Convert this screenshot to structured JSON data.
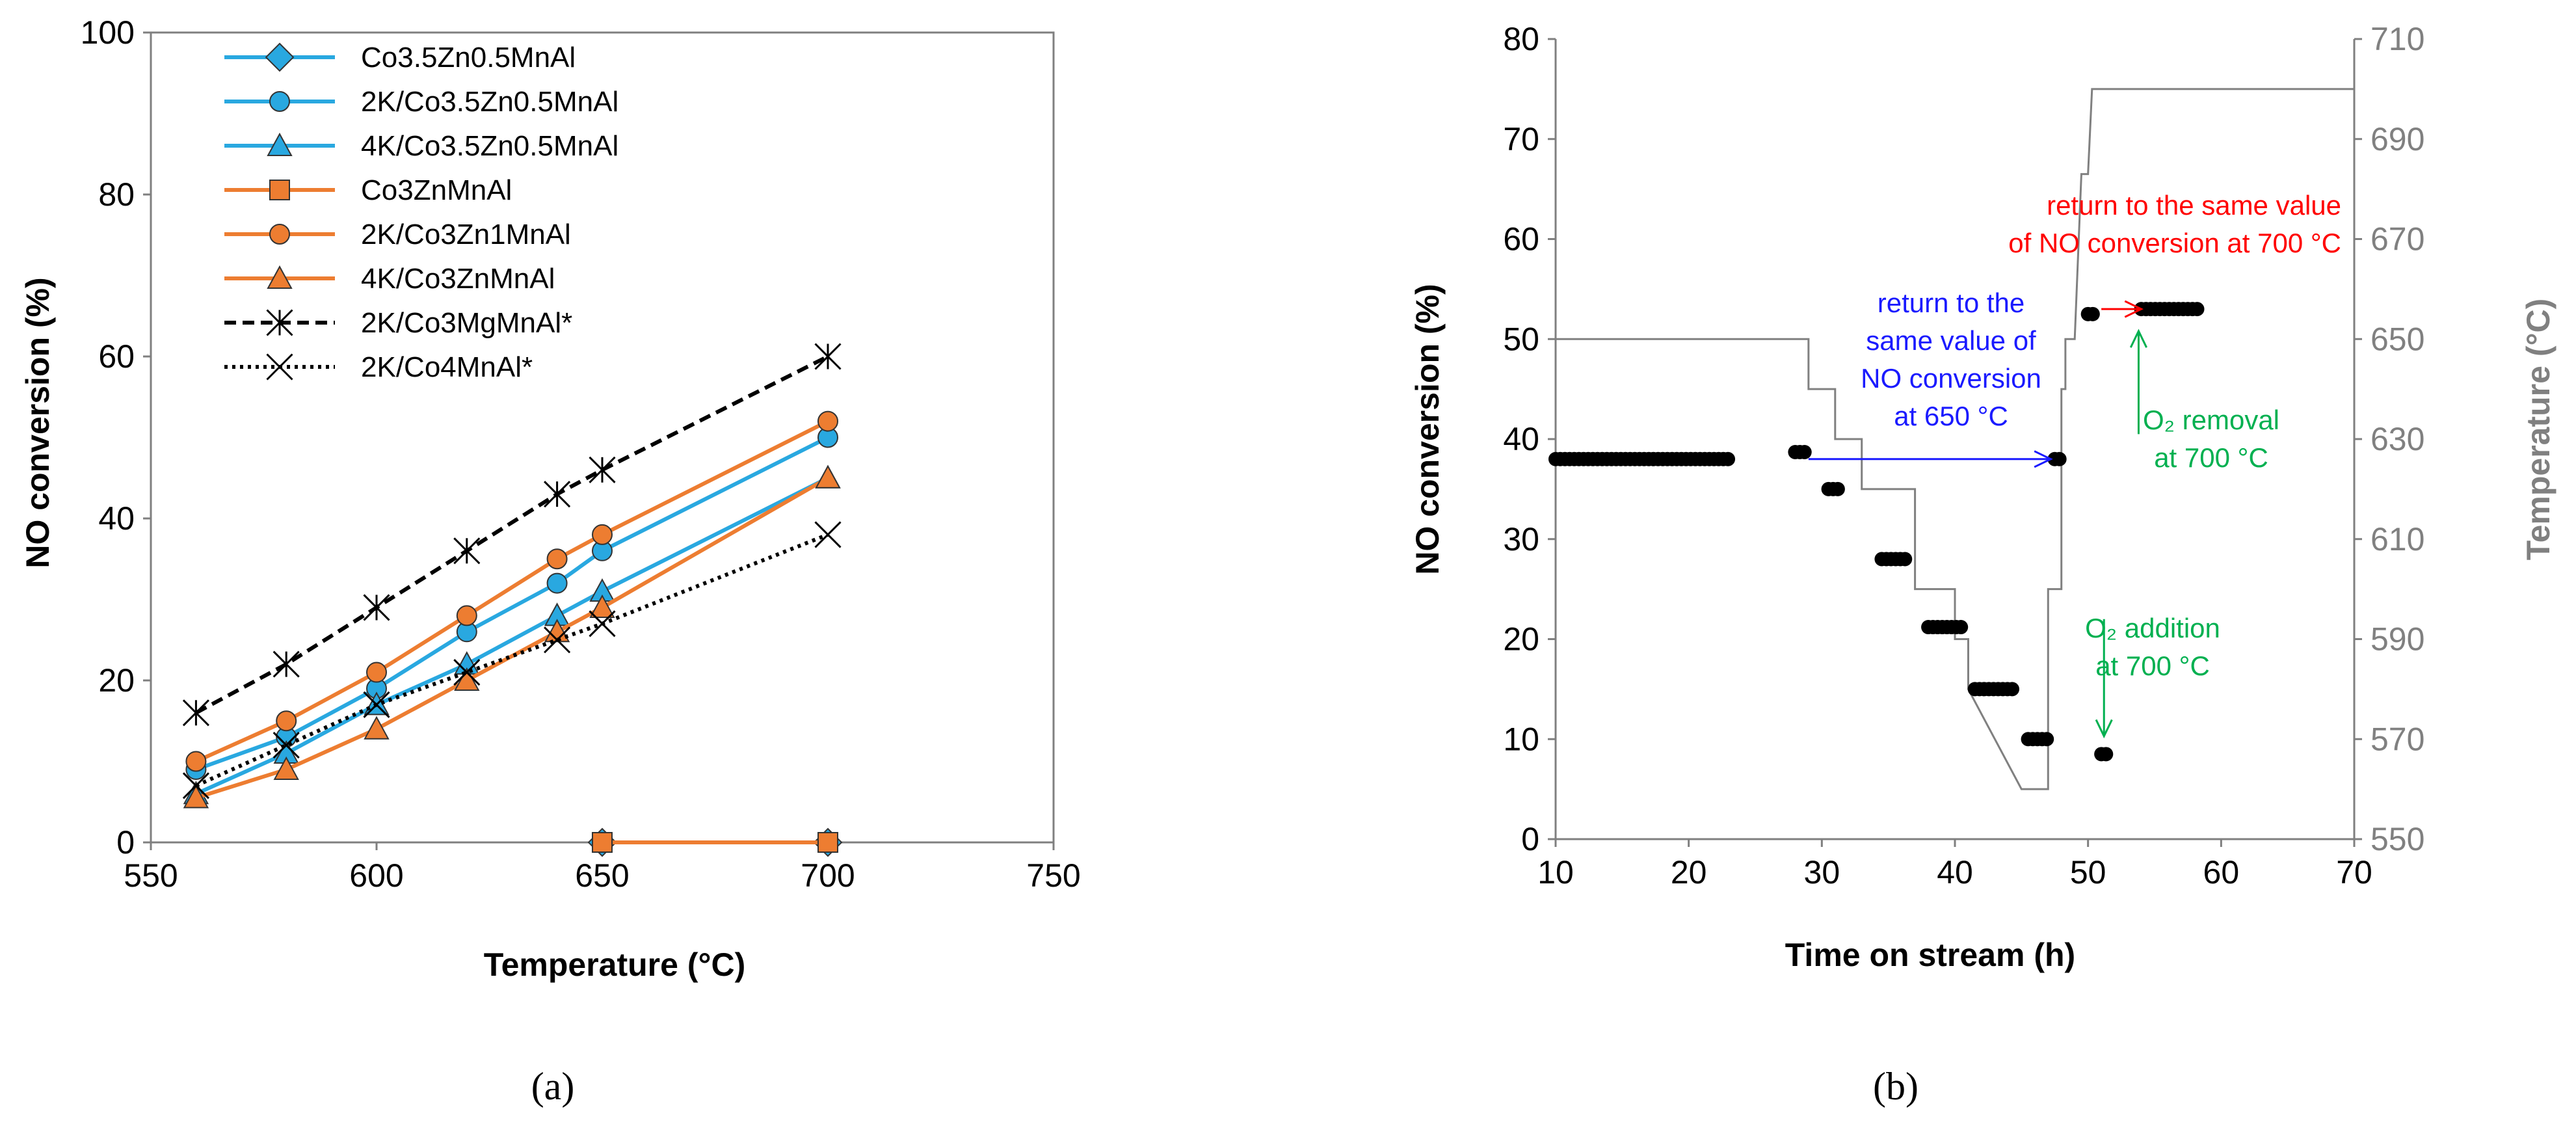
{
  "chart_data": [
    {
      "type": "line",
      "panel_label": "(a)",
      "xlabel": "Temperature (°C)",
      "ylabel": "NO conversion (%)",
      "xlim": [
        550,
        750
      ],
      "ylim": [
        0,
        100
      ],
      "xticks": [
        550,
        600,
        650,
        700,
        750
      ],
      "yticks": [
        0,
        20,
        40,
        60,
        80,
        100
      ],
      "legend_position": "top-left",
      "series": [
        {
          "name": "Co3.5Zn0.5MnAl",
          "color": "#29a8e0",
          "marker": "diamond",
          "dash": "solid",
          "x": [
            650,
            700
          ],
          "y": [
            0,
            0
          ]
        },
        {
          "name": "2K/Co3.5Zn0.5MnAl",
          "color": "#29a8e0",
          "marker": "circle",
          "dash": "solid",
          "x": [
            560,
            580,
            600,
            620,
            640,
            650,
            700
          ],
          "y": [
            9,
            13,
            19,
            26,
            32,
            36,
            50
          ]
        },
        {
          "name": "4K/Co3.5Zn0.5MnAl",
          "color": "#29a8e0",
          "marker": "triangle",
          "dash": "solid",
          "x": [
            560,
            580,
            600,
            620,
            640,
            650,
            700
          ],
          "y": [
            6,
            11,
            17,
            22,
            28,
            31,
            45
          ]
        },
        {
          "name": "Co3ZnMnAl",
          "color": "#ed7d31",
          "marker": "square",
          "dash": "solid",
          "x": [
            650,
            700
          ],
          "y": [
            0,
            0
          ]
        },
        {
          "name": "2K/Co3Zn1MnAl",
          "color": "#ed7d31",
          "marker": "circle",
          "dash": "solid",
          "x": [
            560,
            580,
            600,
            620,
            640,
            650,
            700
          ],
          "y": [
            10,
            15,
            21,
            28,
            35,
            38,
            52
          ]
        },
        {
          "name": "4K/Co3ZnMnAl",
          "color": "#ed7d31",
          "marker": "triangle",
          "dash": "solid",
          "x": [
            560,
            580,
            600,
            620,
            640,
            650,
            700
          ],
          "y": [
            5.5,
            9,
            14,
            20,
            26,
            29,
            45
          ]
        },
        {
          "name": "2K/Co3MgMnAl*",
          "color": "#000000",
          "marker": "asterisk",
          "dash": "dashed",
          "x": [
            560,
            580,
            600,
            620,
            640,
            650,
            700
          ],
          "y": [
            16,
            22,
            29,
            36,
            43,
            46,
            60
          ]
        },
        {
          "name": "2K/Co4MnAl*",
          "color": "#000000",
          "marker": "x",
          "dash": "dotted",
          "x": [
            560,
            580,
            600,
            620,
            640,
            650,
            700
          ],
          "y": [
            7,
            12,
            17,
            21,
            25,
            27,
            38
          ]
        }
      ]
    },
    {
      "type": "scatter",
      "panel_label": "(b)",
      "xlabel": "Time on stream (h)",
      "ylabel": "NO conversion (%)",
      "y2label": "Temperature (°C)",
      "xlim": [
        10,
        70
      ],
      "ylim": [
        0,
        80
      ],
      "y2lim": [
        550,
        710
      ],
      "xticks": [
        10,
        20,
        30,
        40,
        50,
        60,
        70
      ],
      "yticks": [
        0,
        10,
        20,
        30,
        40,
        50,
        60,
        70,
        80
      ],
      "y2ticks": [
        550,
        570,
        590,
        610,
        630,
        650,
        670,
        690,
        710
      ],
      "no_conversion_series": {
        "name": "NO conversion",
        "color": "#000000",
        "segments": [
          {
            "x_start": 10,
            "x_end": 23,
            "y": 38
          },
          {
            "x_start": 28,
            "x_end": 29,
            "y": 38.7
          },
          {
            "x_start": 30.5,
            "x_end": 31.5,
            "y": 35
          },
          {
            "x_start": 34.5,
            "x_end": 36.5,
            "y": 28
          },
          {
            "x_start": 38,
            "x_end": 40.5,
            "y": 21.2
          },
          {
            "x_start": 41.5,
            "x_end": 44.5,
            "y": 15
          },
          {
            "x_start": 45.5,
            "x_end": 47,
            "y": 10
          },
          {
            "x_start": 47.5,
            "x_end": 48,
            "y": 38
          },
          {
            "x_start": 50,
            "x_end": 50.5,
            "y": 52.5
          },
          {
            "x_start": 51,
            "x_end": 51.5,
            "y": 8.5
          },
          {
            "x_start": 54,
            "x_end": 58.5,
            "y": 53
          }
        ]
      },
      "temperature_series": {
        "name": "Temperature",
        "color": "#808080",
        "x": [
          10,
          29,
          29,
          31,
          31,
          33,
          33,
          36,
          36,
          37,
          37,
          40,
          40,
          41,
          41,
          45,
          45,
          47,
          47,
          48,
          48,
          48.3,
          48.3,
          49,
          49.5,
          50,
          50.3,
          70
        ],
        "y": [
          650,
          650,
          640,
          640,
          630,
          630,
          620,
          620,
          620,
          620,
          600,
          600,
          590,
          590,
          580,
          560,
          560,
          560,
          600,
          600,
          640,
          640,
          650,
          650,
          683,
          683,
          700,
          700
        ]
      },
      "annotations": [
        {
          "id": "a650",
          "text_lines": [
            "return to the",
            "same value of",
            "NO conversion",
            "at 650 °C"
          ],
          "color": "#1a1aff"
        },
        {
          "id": "a700",
          "text_lines": [
            "return to the same value",
            "of NO conversion at 700 °C"
          ],
          "color": "#ff0000"
        },
        {
          "id": "o2removal",
          "text_lines": [
            "O₂ removal",
            "at 700 °C"
          ],
          "color": "#00b050"
        },
        {
          "id": "o2addition",
          "text_lines": [
            "O₂ addition",
            "at 700 °C"
          ],
          "color": "#00b050"
        }
      ]
    }
  ]
}
